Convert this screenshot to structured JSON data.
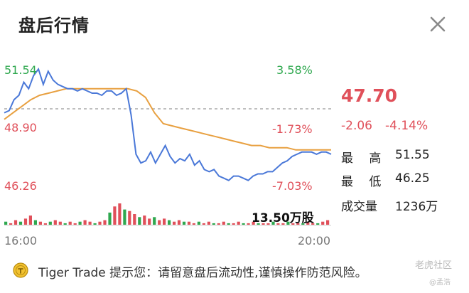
{
  "window": {
    "title": "盘后行情",
    "close_icon": "close-icon"
  },
  "left_labels": {
    "high": "51.54",
    "prev_close": "48.90",
    "low": "46.26"
  },
  "pct_labels": {
    "high": "3.58%",
    "prev_close": "-1.73%",
    "low": "-7.03%"
  },
  "quote": {
    "price": "47.70",
    "change": "-2.06",
    "change_pct": "-4.14%"
  },
  "stats": [
    {
      "label": "最　 高",
      "value": "51.55"
    },
    {
      "label": "最　 低",
      "value": "46.25"
    },
    {
      "label": "成交量",
      "value": "1236万"
    }
  ],
  "volume_label": "13.50万股",
  "time_axis": {
    "start": "16:00",
    "end": "20:00"
  },
  "tip": {
    "icon": "tiger-coin-icon",
    "text": "Tiger Trade 提示您：请留意盘后流动性,谨慎操作防范风险。"
  },
  "watermark": {
    "line1": "老虎社区",
    "line2": "@孟浩"
  },
  "colors": {
    "up": "#2fa84f",
    "down": "#e0505a",
    "price_line": "#4a78d8",
    "avg_line": "#e8a040",
    "ref_line": "#999999"
  },
  "chart_data": {
    "type": "line",
    "x_range": [
      "16:00",
      "20:00"
    ],
    "ylim": [
      46.26,
      51.54
    ],
    "reference": 48.9,
    "series": [
      {
        "values": [
          49.5,
          49.6,
          50.1,
          50.3,
          50.9,
          50.6,
          51.2,
          51.5,
          50.8,
          51.4,
          51.0,
          50.8,
          50.7,
          50.6,
          50.6,
          50.5,
          50.6,
          50.5,
          50.4,
          50.4,
          50.3,
          50.5,
          50.5,
          50.3,
          50.4,
          50.6,
          49.4,
          47.6,
          47.2,
          47.3,
          47.7,
          47.2,
          47.6,
          48.0,
          47.5,
          47.2,
          47.4,
          47.3,
          47.6,
          47.1,
          47.3,
          46.9,
          46.8,
          46.9,
          46.6,
          46.5,
          46.4,
          46.6,
          46.6,
          46.5,
          46.4,
          46.6,
          46.7,
          46.7,
          46.8,
          46.8,
          47.0,
          47.2,
          47.3,
          47.5,
          47.6,
          47.7,
          47.7,
          47.7,
          47.6,
          47.7,
          47.7,
          47.6
        ]
      },
      {
        "values": [
          49.2,
          49.5,
          49.8,
          50.1,
          50.3,
          50.4,
          50.5,
          50.6,
          50.6,
          50.6,
          50.6,
          50.6,
          50.6,
          50.6,
          50.6,
          50.5,
          50.2,
          49.5,
          49.0,
          48.9,
          48.8,
          48.7,
          48.6,
          48.5,
          48.4,
          48.3,
          48.2,
          48.1,
          48.0,
          48.0,
          47.9,
          47.9,
          47.9,
          47.8,
          47.8,
          47.8,
          47.8,
          47.8
        ]
      }
    ],
    "volume": [
      2,
      1,
      3,
      2,
      4,
      6,
      3,
      2,
      1,
      2,
      3,
      2,
      1,
      2,
      1,
      2,
      3,
      2,
      1,
      2,
      3,
      8,
      12,
      14,
      10,
      9,
      7,
      5,
      6,
      4,
      5,
      3,
      4,
      3,
      2,
      3,
      2,
      2,
      1,
      2,
      1,
      2,
      1,
      1,
      2,
      1,
      1,
      2,
      1,
      1,
      2,
      1,
      1,
      1,
      2,
      1,
      1,
      2,
      1,
      1,
      1,
      2,
      1,
      1,
      2,
      3
    ]
  }
}
